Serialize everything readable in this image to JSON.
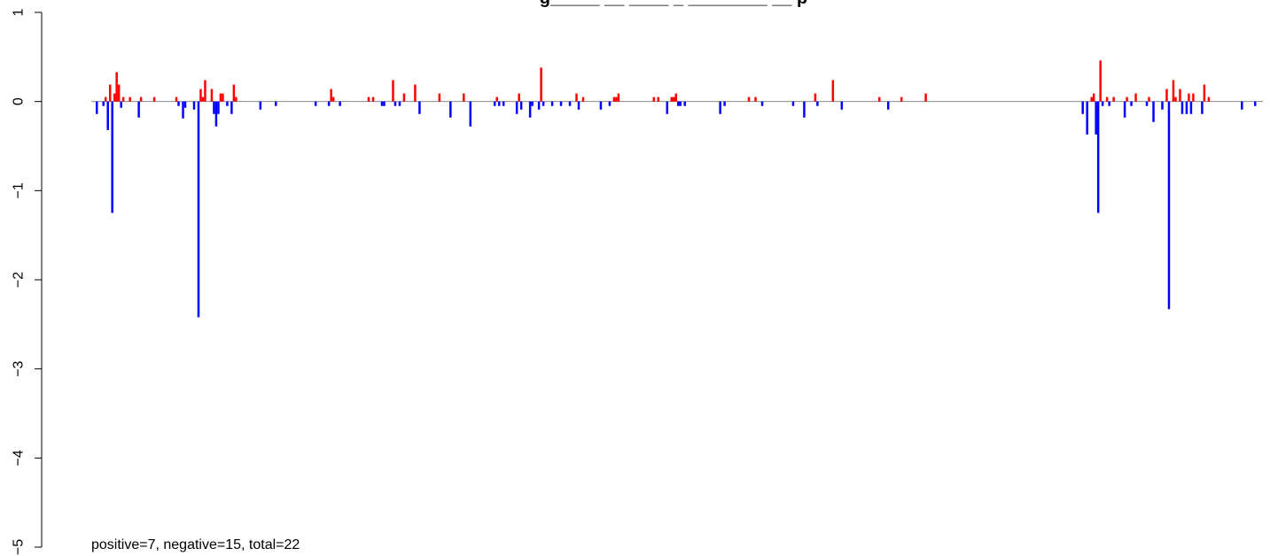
{
  "chart_data": {
    "type": "bar",
    "title": "g_____ __ ____ _ ________ __ p",
    "xlabel": "",
    "ylabel": "",
    "ylim": [
      -5,
      1
    ],
    "yticks": [
      1,
      0,
      -1,
      -2,
      -3,
      -4,
      -5
    ],
    "ytick_labels": [
      "1",
      "0",
      "−1",
      "−2",
      "−3",
      "−4",
      "−5"
    ],
    "grid": false,
    "legend": "none",
    "annotation": "positive=7, negative=15, total=22",
    "colors": {
      "positive": "#ff0000",
      "negative": "#0000ff",
      "baseline": "#888888"
    },
    "bars": [
      {
        "x": 2,
        "v": -0.14
      },
      {
        "x": 5,
        "v": -0.05
      },
      {
        "x": 6,
        "v": 0.05
      },
      {
        "x": 7,
        "v": -0.32
      },
      {
        "x": 8,
        "v": 0.19
      },
      {
        "x": 9,
        "v": -1.25
      },
      {
        "x": 10,
        "v": 0.09
      },
      {
        "x": 11,
        "v": 0.33
      },
      {
        "x": 12,
        "v": 0.19
      },
      {
        "x": 13,
        "v": -0.07
      },
      {
        "x": 14,
        "v": 0.05
      },
      {
        "x": 17,
        "v": 0.05
      },
      {
        "x": 21,
        "v": -0.18
      },
      {
        "x": 22,
        "v": 0.05
      },
      {
        "x": 28,
        "v": 0.05
      },
      {
        "x": 38,
        "v": 0.05
      },
      {
        "x": 39,
        "v": -0.05
      },
      {
        "x": 41,
        "v": -0.19
      },
      {
        "x": 42,
        "v": -0.07
      },
      {
        "x": 46,
        "v": -0.09
      },
      {
        "x": 48,
        "v": -2.42
      },
      {
        "x": 49,
        "v": 0.14
      },
      {
        "x": 50,
        "v": 0.05
      },
      {
        "x": 51,
        "v": 0.24
      },
      {
        "x": 54,
        "v": 0.14
      },
      {
        "x": 55,
        "v": -0.14
      },
      {
        "x": 56,
        "v": -0.28
      },
      {
        "x": 57,
        "v": -0.14
      },
      {
        "x": 58,
        "v": 0.09
      },
      {
        "x": 59,
        "v": 0.09
      },
      {
        "x": 61,
        "v": -0.05
      },
      {
        "x": 63,
        "v": -0.14
      },
      {
        "x": 64,
        "v": 0.19
      },
      {
        "x": 65,
        "v": 0.05
      },
      {
        "x": 76,
        "v": -0.09
      },
      {
        "x": 83,
        "v": -0.05
      },
      {
        "x": 101,
        "v": -0.05
      },
      {
        "x": 107,
        "v": -0.05
      },
      {
        "x": 108,
        "v": 0.14
      },
      {
        "x": 109,
        "v": 0.05
      },
      {
        "x": 112,
        "v": -0.05
      },
      {
        "x": 125,
        "v": 0.05
      },
      {
        "x": 127,
        "v": 0.05
      },
      {
        "x": 131,
        "v": -0.05
      },
      {
        "x": 132,
        "v": -0.05
      },
      {
        "x": 136,
        "v": 0.24
      },
      {
        "x": 137,
        "v": -0.05
      },
      {
        "x": 139,
        "v": -0.05
      },
      {
        "x": 141,
        "v": 0.09
      },
      {
        "x": 146,
        "v": 0.19
      },
      {
        "x": 148,
        "v": -0.14
      },
      {
        "x": 157,
        "v": 0.09
      },
      {
        "x": 162,
        "v": -0.18
      },
      {
        "x": 168,
        "v": 0.09
      },
      {
        "x": 171,
        "v": -0.28
      },
      {
        "x": 182,
        "v": -0.05
      },
      {
        "x": 183,
        "v": 0.05
      },
      {
        "x": 184,
        "v": -0.05
      },
      {
        "x": 186,
        "v": -0.05
      },
      {
        "x": 192,
        "v": -0.14
      },
      {
        "x": 193,
        "v": 0.09
      },
      {
        "x": 194,
        "v": -0.09
      },
      {
        "x": 198,
        "v": -0.18
      },
      {
        "x": 199,
        "v": -0.05
      },
      {
        "x": 202,
        "v": -0.09
      },
      {
        "x": 203,
        "v": 0.38
      },
      {
        "x": 204,
        "v": -0.05
      },
      {
        "x": 208,
        "v": -0.05
      },
      {
        "x": 212,
        "v": -0.05
      },
      {
        "x": 216,
        "v": -0.05
      },
      {
        "x": 219,
        "v": 0.09
      },
      {
        "x": 220,
        "v": -0.09
      },
      {
        "x": 222,
        "v": 0.05
      },
      {
        "x": 230,
        "v": -0.09
      },
      {
        "x": 234,
        "v": -0.05
      },
      {
        "x": 236,
        "v": 0.05
      },
      {
        "x": 237,
        "v": 0.05
      },
      {
        "x": 238,
        "v": 0.09
      },
      {
        "x": 254,
        "v": 0.05
      },
      {
        "x": 256,
        "v": 0.05
      },
      {
        "x": 260,
        "v": -0.14
      },
      {
        "x": 262,
        "v": 0.05
      },
      {
        "x": 263,
        "v": 0.05
      },
      {
        "x": 264,
        "v": 0.09
      },
      {
        "x": 265,
        "v": -0.05
      },
      {
        "x": 266,
        "v": -0.05
      },
      {
        "x": 268,
        "v": -0.05
      },
      {
        "x": 284,
        "v": -0.14
      },
      {
        "x": 286,
        "v": -0.05
      },
      {
        "x": 297,
        "v": 0.05
      },
      {
        "x": 300,
        "v": 0.05
      },
      {
        "x": 303,
        "v": -0.05
      },
      {
        "x": 317,
        "v": -0.05
      },
      {
        "x": 322,
        "v": -0.18
      },
      {
        "x": 327,
        "v": 0.09
      },
      {
        "x": 328,
        "v": -0.05
      },
      {
        "x": 335,
        "v": 0.24
      },
      {
        "x": 339,
        "v": -0.09
      },
      {
        "x": 356,
        "v": 0.05
      },
      {
        "x": 360,
        "v": -0.09
      },
      {
        "x": 366,
        "v": 0.05
      },
      {
        "x": 377,
        "v": 0.09
      },
      {
        "x": 448,
        "v": -0.14
      },
      {
        "x": 450,
        "v": -0.37
      },
      {
        "x": 452,
        "v": 0.05
      },
      {
        "x": 453,
        "v": 0.09
      },
      {
        "x": 454,
        "v": -0.37
      },
      {
        "x": 455,
        "v": -1.25
      },
      {
        "x": 456,
        "v": 0.46
      },
      {
        "x": 457,
        "v": -0.05
      },
      {
        "x": 459,
        "v": 0.05
      },
      {
        "x": 460,
        "v": -0.05
      },
      {
        "x": 462,
        "v": 0.05
      },
      {
        "x": 467,
        "v": -0.18
      },
      {
        "x": 468,
        "v": 0.05
      },
      {
        "x": 470,
        "v": -0.05
      },
      {
        "x": 472,
        "v": 0.09
      },
      {
        "x": 477,
        "v": -0.05
      },
      {
        "x": 478,
        "v": 0.05
      },
      {
        "x": 480,
        "v": -0.23
      },
      {
        "x": 484,
        "v": -0.09
      },
      {
        "x": 486,
        "v": 0.14
      },
      {
        "x": 487,
        "v": -2.33
      },
      {
        "x": 489,
        "v": 0.24
      },
      {
        "x": 490,
        "v": 0.05
      },
      {
        "x": 492,
        "v": 0.14
      },
      {
        "x": 493,
        "v": -0.14
      },
      {
        "x": 495,
        "v": -0.14
      },
      {
        "x": 496,
        "v": 0.09
      },
      {
        "x": 497,
        "v": -0.14
      },
      {
        "x": 498,
        "v": 0.09
      },
      {
        "x": 502,
        "v": -0.14
      },
      {
        "x": 503,
        "v": 0.19
      },
      {
        "x": 505,
        "v": 0.05
      },
      {
        "x": 520,
        "v": -0.09
      },
      {
        "x": 526,
        "v": -0.05
      }
    ]
  }
}
